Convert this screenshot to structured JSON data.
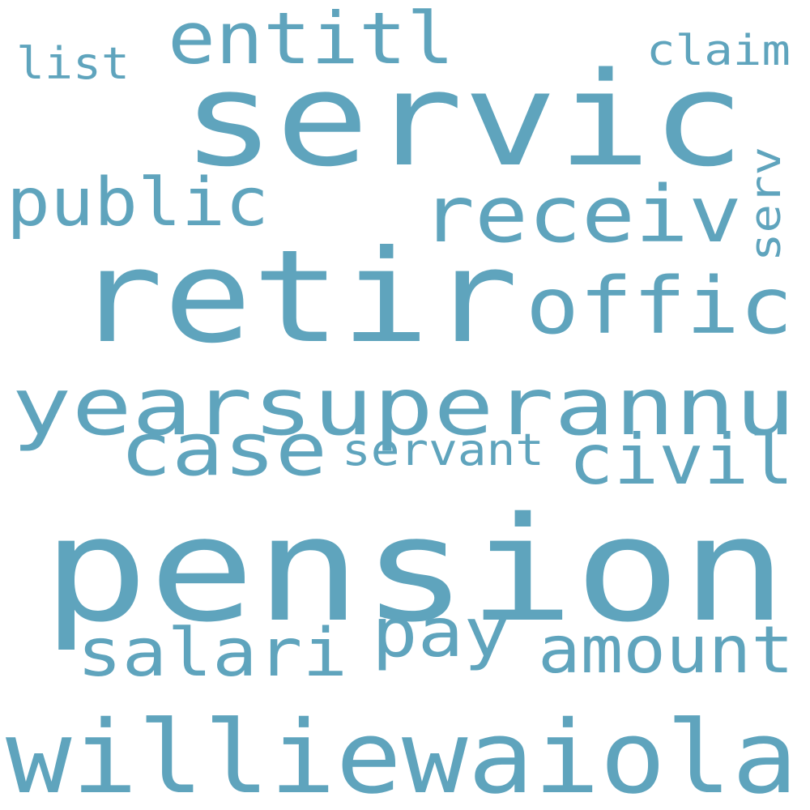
{
  "colors": {
    "word": "#5fa4bd",
    "background": "#ffffff"
  },
  "words": [
    {
      "text": "servic"
    },
    {
      "text": "retir"
    },
    {
      "text": "pension"
    },
    {
      "text": "williewaiola"
    },
    {
      "text": "yearsuperannu"
    },
    {
      "text": "receiv"
    },
    {
      "text": "offic"
    },
    {
      "text": "public"
    },
    {
      "text": "entitl"
    },
    {
      "text": "case"
    },
    {
      "text": "civil"
    },
    {
      "text": "salari"
    },
    {
      "text": "pay"
    },
    {
      "text": "amount"
    },
    {
      "text": "servant"
    },
    {
      "text": "claim"
    },
    {
      "text": "list"
    },
    {
      "text": "serv"
    }
  ]
}
